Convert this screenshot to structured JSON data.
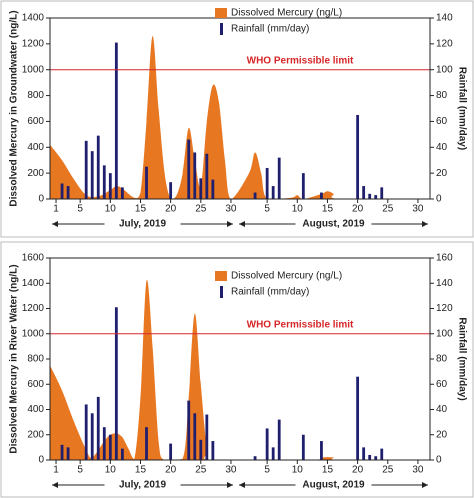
{
  "chart_data": [
    {
      "type": "area-bar",
      "ylabel": "Dissolved Mercury in Groundwater (ng/L)",
      "y2label": "Rainfall (mm/day)",
      "xlim": [
        0,
        63
      ],
      "xticks": [
        1,
        5,
        10,
        15,
        20,
        25,
        30,
        {
          "value": 36,
          "label": "5"
        },
        {
          "value": 41,
          "label": "10"
        },
        {
          "value": 46,
          "label": "15"
        },
        {
          "value": 51,
          "label": "20"
        },
        {
          "value": 56,
          "label": "25"
        },
        {
          "value": 61,
          "label": "30"
        }
      ],
      "ylim": [
        0,
        1400
      ],
      "yticks": [
        0,
        200,
        400,
        600,
        800,
        1000,
        1200,
        1400
      ],
      "y2lim": [
        0,
        140
      ],
      "y2ticks": [
        0,
        20,
        40,
        60,
        80,
        100,
        120,
        140
      ],
      "months": [
        "July, 2019",
        "August, 2019"
      ],
      "limit": 1000,
      "limit_label": "WHO Permissible limit",
      "limit_color": "#d62728",
      "series": [
        {
          "name": "Dissolved Mercury (ng/L)",
          "color": "#e87722",
          "x": [
            0,
            2,
            4,
            6,
            8,
            10,
            11,
            12,
            14,
            15,
            16,
            17,
            18,
            19,
            20,
            21,
            22,
            23,
            24,
            25,
            26,
            27,
            28,
            29,
            30,
            33,
            34,
            35,
            36,
            40,
            41,
            42,
            45,
            46,
            47,
            48,
            62
          ],
          "values": [
            420,
            300,
            150,
            30,
            20,
            70,
            100,
            80,
            10,
            50,
            600,
            1260,
            700,
            200,
            0,
            30,
            200,
            550,
            300,
            100,
            600,
            880,
            750,
            300,
            0,
            200,
            360,
            200,
            0,
            10,
            30,
            0,
            40,
            60,
            40,
            0,
            0
          ]
        },
        {
          "name": "Rainfall (mm/day)",
          "color": "#1f1f6e",
          "axis": "y2",
          "x": [
            2,
            3,
            6,
            7,
            8,
            9,
            10,
            11,
            12,
            16,
            20,
            23,
            24,
            25,
            26,
            27,
            34,
            36,
            37,
            38,
            42,
            45,
            51,
            52,
            53,
            54,
            55
          ],
          "values": [
            12,
            10,
            45,
            37,
            49,
            26,
            20,
            121,
            9,
            25,
            13,
            46,
            36,
            16,
            35,
            15,
            5,
            24,
            10,
            32,
            20,
            5,
            65,
            10,
            4,
            3,
            9
          ]
        }
      ]
    },
    {
      "type": "area-bar",
      "ylabel": "Dissolved Mercury in River Water (ng/L)",
      "y2label": "Rainfall (mm/day)",
      "xlim": [
        0,
        63
      ],
      "xticks": [
        1,
        5,
        10,
        15,
        20,
        25,
        30,
        {
          "value": 36,
          "label": "5"
        },
        {
          "value": 41,
          "label": "10"
        },
        {
          "value": 46,
          "label": "15"
        },
        {
          "value": 51,
          "label": "20"
        },
        {
          "value": 56,
          "label": "25"
        },
        {
          "value": 61,
          "label": "30"
        }
      ],
      "ylim": [
        0,
        1600
      ],
      "yticks": [
        0,
        200,
        400,
        600,
        800,
        1000,
        1200,
        1400,
        1600
      ],
      "y2lim": [
        0,
        160
      ],
      "y2ticks": [
        0,
        20,
        40,
        60,
        80,
        100,
        120,
        140,
        160
      ],
      "months": [
        "July, 2019",
        "August, 2019"
      ],
      "limit": 1000,
      "limit_label": "WHO Permissible limit",
      "limit_color": "#d62728",
      "series": [
        {
          "name": "Dissolved Mercury (ng/L)",
          "color": "#e87722",
          "x": [
            0,
            2,
            4,
            6,
            7,
            9,
            10,
            11,
            12,
            13,
            14,
            15,
            16,
            17,
            18,
            19,
            22,
            23,
            24,
            25,
            26,
            27,
            43,
            45,
            47,
            48,
            62
          ],
          "values": [
            750,
            550,
            300,
            80,
            20,
            150,
            200,
            210,
            180,
            90,
            10,
            500,
            1420,
            900,
            150,
            0,
            10,
            500,
            1160,
            600,
            100,
            0,
            0,
            20,
            20,
            0,
            0
          ]
        },
        {
          "name": "Rainfall (mm/day)",
          "color": "#1f1f6e",
          "axis": "y2",
          "x": [
            2,
            3,
            6,
            7,
            8,
            9,
            10,
            11,
            12,
            16,
            20,
            23,
            24,
            25,
            26,
            27,
            34,
            36,
            37,
            38,
            42,
            45,
            51,
            52,
            53,
            54,
            55
          ],
          "values": [
            12,
            10,
            44,
            37,
            50,
            26,
            20,
            121,
            9,
            26,
            13,
            47,
            37,
            16,
            36,
            15,
            3,
            25,
            10,
            32,
            20,
            15,
            66,
            10,
            4,
            3,
            9
          ]
        }
      ]
    }
  ]
}
